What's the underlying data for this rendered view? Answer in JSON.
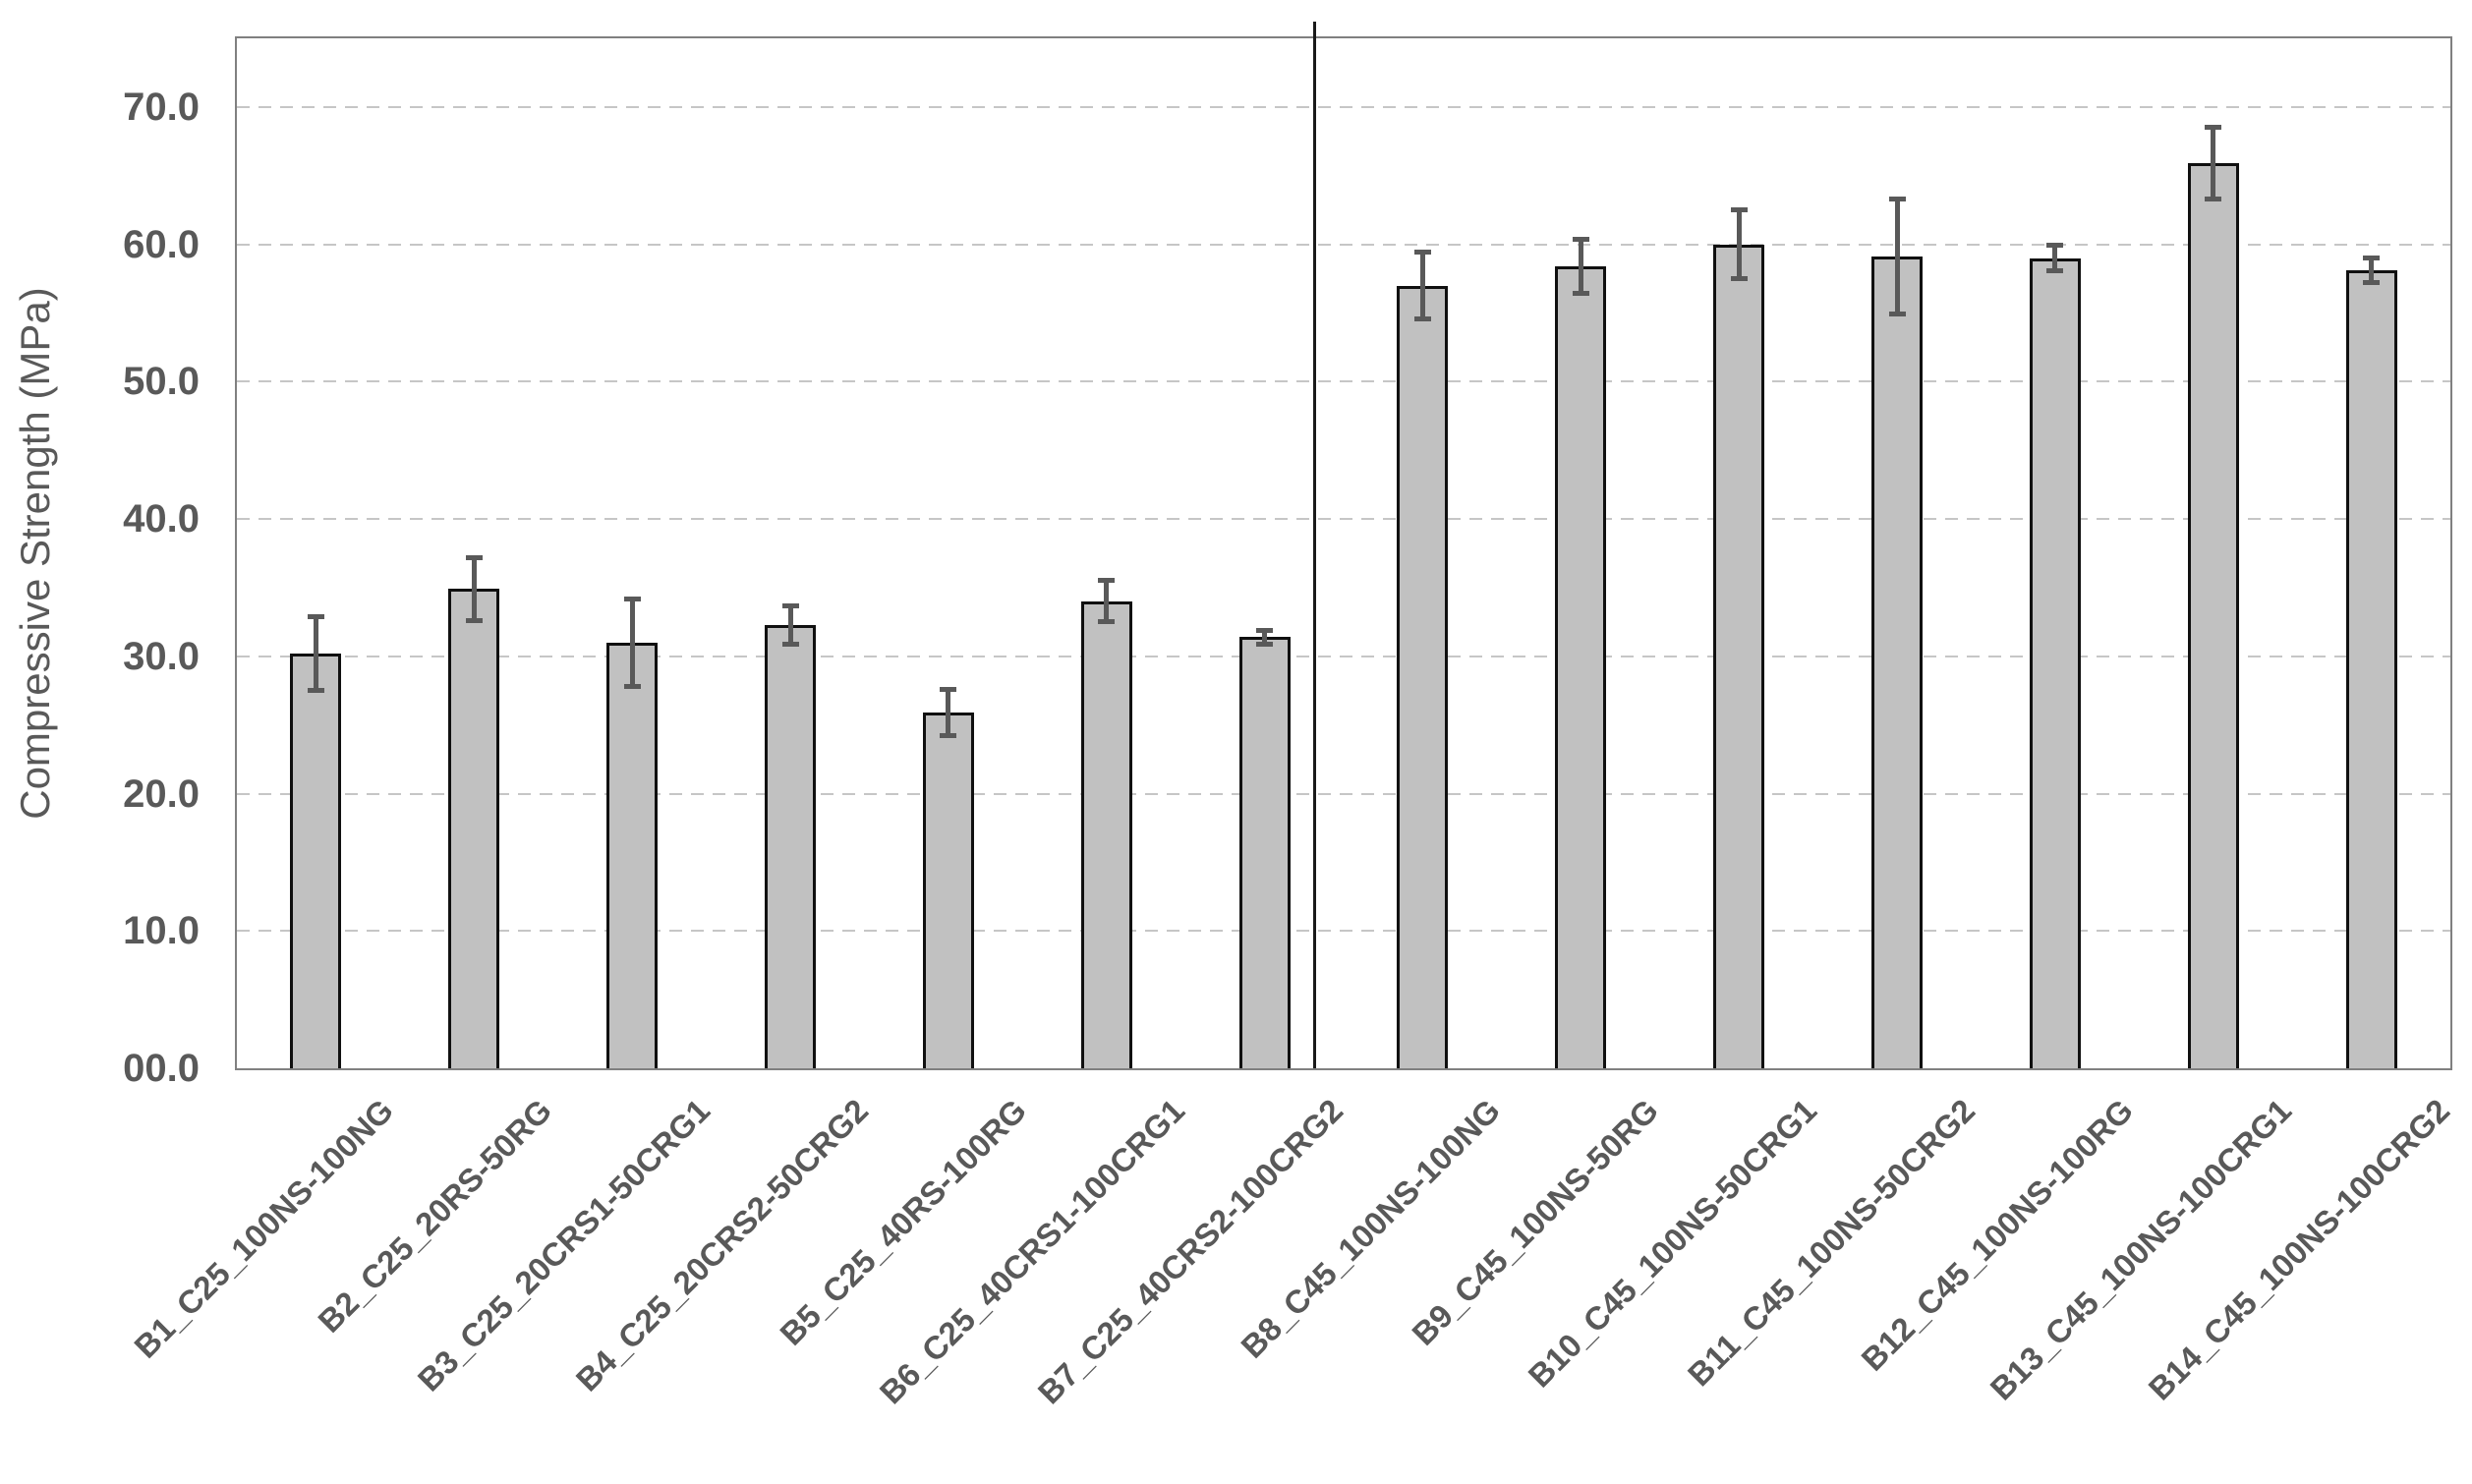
{
  "chart_data": {
    "type": "bar",
    "title": "",
    "xlabel": "",
    "ylabel": "Compressive Strength (MPa)",
    "ylim": [
      0,
      75
    ],
    "ytick_step": 10,
    "ytick_labels": [
      "00.0",
      "10.0",
      "20.0",
      "30.0",
      "40.0",
      "50.0",
      "60.0",
      "70.0"
    ],
    "grid": "horizontal-dashed",
    "legend": "none",
    "categories": [
      "B1_C25_100NS-100NG",
      "B2_C25_20RS-50RG",
      "B3_C25_20CRS1-50CRG1",
      "B4_C25_20CRS2-50CRG2",
      "B5_C25_40RS-100RG",
      "B6_C25_40CRS1-100CRG1",
      "B7_C25_40CRS2-100CRG2",
      "B8_C45_100NS-100NG",
      "B9_C45_100NS-50RG",
      "B10_C45_100NS-50CRG1",
      "B11_C45_100NS-50CRG2",
      "B12_C45_100NS-100RG",
      "B13_C45_100NS-100CRG1",
      "B14_C45_100NS-100CRG2"
    ],
    "values": [
      30.2,
      34.9,
      31.0,
      32.3,
      25.9,
      34.0,
      31.4,
      57.0,
      58.4,
      60.0,
      59.1,
      59.0,
      65.9,
      58.1
    ],
    "error_bars": [
      2.7,
      2.3,
      3.2,
      1.4,
      1.7,
      1.5,
      0.5,
      2.4,
      2.0,
      2.5,
      4.2,
      0.9,
      2.6,
      0.9
    ],
    "group_divider_after_category_index": 6,
    "colors": {
      "bar_fill": "#c1c1c1",
      "bar_border": "#101010",
      "error_bar": "#595959",
      "gridline": "#c6c6c6",
      "axis_frame": "#808080",
      "text": "#595959",
      "divider": "#1a1a1a",
      "background": "#ffffff"
    }
  }
}
